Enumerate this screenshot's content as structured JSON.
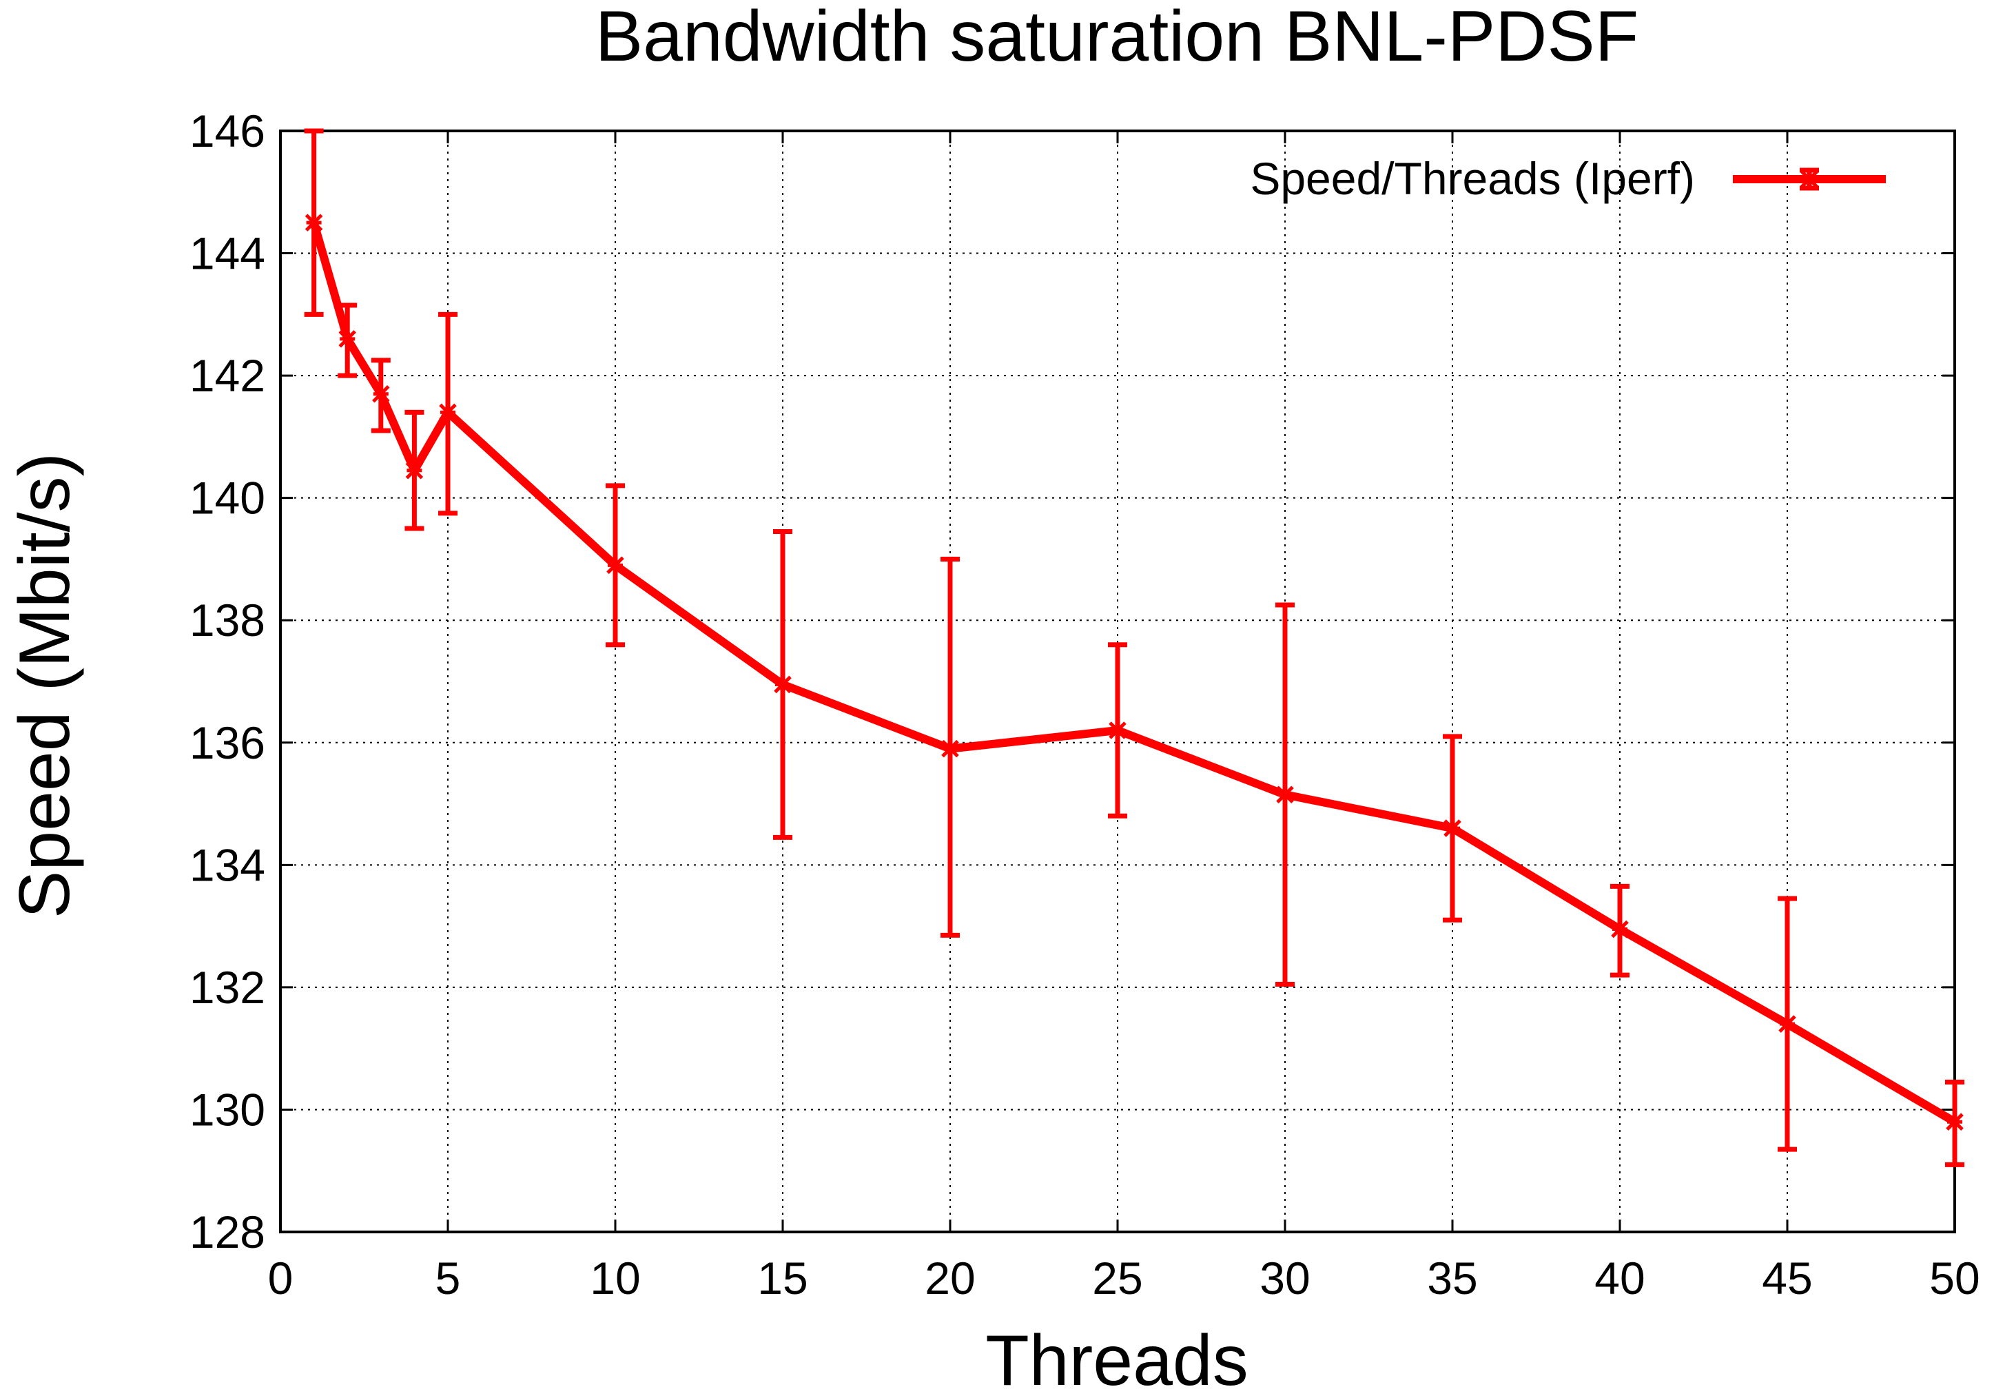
{
  "chart_data": {
    "type": "line",
    "title": "Bandwidth saturation BNL-PDSF",
    "xlabel": "Threads",
    "ylabel": "Speed (Mbit/s)",
    "xlim": [
      0,
      50
    ],
    "ylim": [
      128,
      146
    ],
    "x_ticks": [
      0,
      5,
      10,
      15,
      20,
      25,
      30,
      35,
      40,
      45,
      50
    ],
    "y_ticks": [
      128,
      130,
      132,
      134,
      136,
      138,
      140,
      142,
      144,
      146
    ],
    "grid": true,
    "legend_position": "top-right",
    "series": [
      {
        "name": "Speed/Threads (Iperf)",
        "color": "#ff0000",
        "marker": "star",
        "error_bars": true,
        "x": [
          1,
          2,
          3,
          4,
          5,
          10,
          15,
          20,
          25,
          30,
          35,
          40,
          45,
          50
        ],
        "y": [
          144.5,
          142.6,
          141.7,
          140.45,
          141.4,
          138.9,
          136.95,
          135.9,
          136.2,
          135.15,
          134.6,
          132.95,
          131.4,
          129.8
        ],
        "err_low": [
          143.0,
          142.0,
          141.1,
          139.5,
          139.75,
          137.6,
          134.45,
          132.85,
          134.8,
          132.05,
          133.1,
          132.2,
          129.35,
          129.1
        ],
        "err_high": [
          146.0,
          143.15,
          142.25,
          141.4,
          143.0,
          140.2,
          139.45,
          139.0,
          137.6,
          138.25,
          136.1,
          133.65,
          133.45,
          130.45
        ]
      }
    ]
  }
}
